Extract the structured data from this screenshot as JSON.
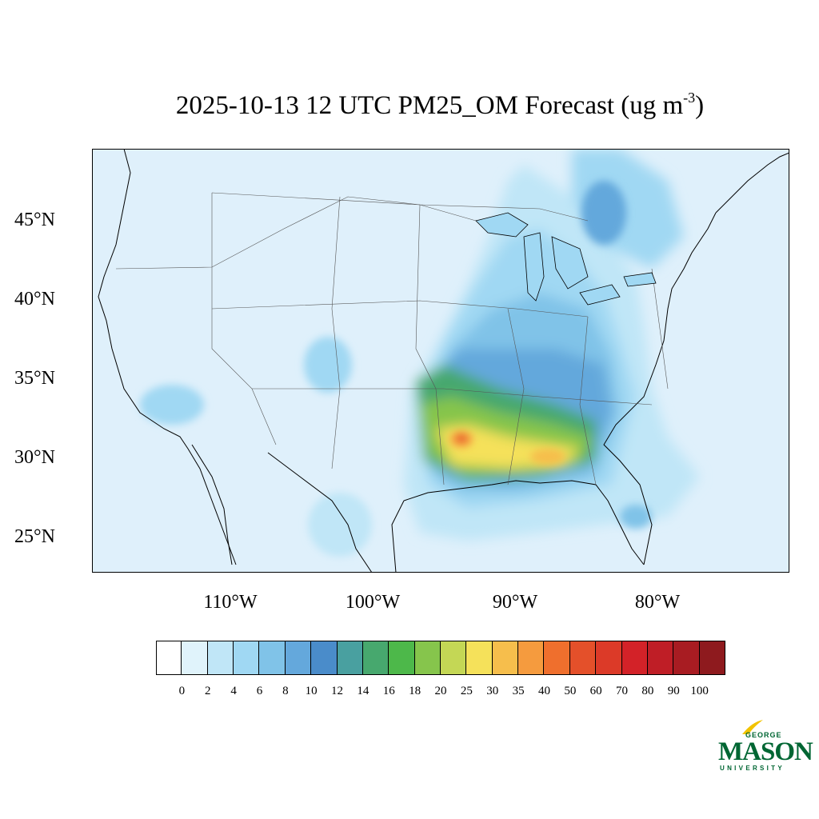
{
  "title": {
    "main": "2025-10-13 12 UTC PM25_OM Forecast (ug m",
    "superscript": "-3",
    "close": ")"
  },
  "map": {
    "lat_labels": [
      "45°N",
      "40°N",
      "35°N",
      "30°N",
      "25°N"
    ],
    "lon_labels": [
      "110°W",
      "100°W",
      "90°W",
      "80°W"
    ],
    "background_color": "#dff0fb"
  },
  "colorbar": {
    "colors": [
      "#ffffff",
      "#e0f3fb",
      "#c0e6f7",
      "#a0d8f3",
      "#80c3e8",
      "#64a8dc",
      "#4a8cca",
      "#49a0a0",
      "#47a86e",
      "#4db84a",
      "#86c54c",
      "#c4d755",
      "#f5e15a",
      "#f6be4c",
      "#f59b3e",
      "#ef6f2d",
      "#e4502a",
      "#dc3a28",
      "#d32228",
      "#bf1e26",
      "#a81c22",
      "#8e1a1e"
    ],
    "ticks": [
      "0",
      "2",
      "4",
      "6",
      "8",
      "10",
      "12",
      "14",
      "16",
      "18",
      "20",
      "25",
      "30",
      "35",
      "40",
      "50",
      "60",
      "70",
      "80",
      "90",
      "100"
    ]
  },
  "logo": {
    "line1": "GEORGE",
    "line2": "MASON",
    "line3": "UNIVERSITY",
    "color": "#006633",
    "accent": "#f2c300"
  }
}
